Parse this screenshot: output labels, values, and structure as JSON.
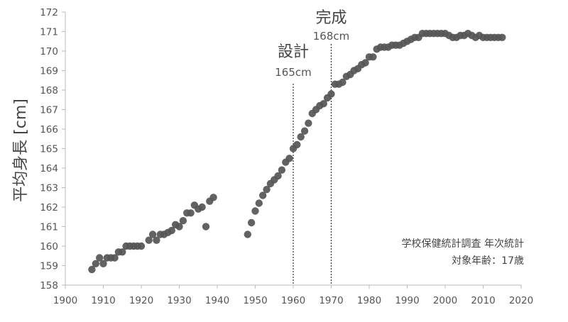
{
  "chart_data": {
    "type": "scatter",
    "title": "",
    "xlabel": "",
    "ylabel": "平均身長 [cm]",
    "xlim": [
      1900,
      2020
    ],
    "ylim": [
      158,
      172
    ],
    "xticks": [
      1900,
      1910,
      1920,
      1930,
      1940,
      1950,
      1960,
      1970,
      1980,
      1990,
      2000,
      2010,
      2020
    ],
    "yticks": [
      158,
      159,
      160,
      161,
      162,
      163,
      164,
      165,
      166,
      167,
      168,
      169,
      170,
      171,
      172
    ],
    "grid": false,
    "marker_color": "#555555",
    "annotations": [
      {
        "x": 1960,
        "label": "設計",
        "sublabel": "165cm"
      },
      {
        "x": 1970,
        "label": "完成",
        "sublabel": "168cm"
      }
    ],
    "source_note": [
      "学校保健統計調査 年次統計",
      "対象年齢：17歳"
    ],
    "points": [
      [
        1907,
        158.8
      ],
      [
        1908,
        159.1
      ],
      [
        1909,
        159.4
      ],
      [
        1910,
        159.1
      ],
      [
        1911,
        159.4
      ],
      [
        1912,
        159.4
      ],
      [
        1913,
        159.4
      ],
      [
        1914,
        159.7
      ],
      [
        1915,
        159.7
      ],
      [
        1916,
        160.0
      ],
      [
        1917,
        160.0
      ],
      [
        1918,
        160.0
      ],
      [
        1919,
        160.0
      ],
      [
        1920,
        160.0
      ],
      [
        1922,
        160.3
      ],
      [
        1923,
        160.6
      ],
      [
        1924,
        160.3
      ],
      [
        1925,
        160.6
      ],
      [
        1926,
        160.6
      ],
      [
        1927,
        160.7
      ],
      [
        1928,
        160.8
      ],
      [
        1929,
        161.1
      ],
      [
        1930,
        161.0
      ],
      [
        1931,
        161.3
      ],
      [
        1932,
        161.7
      ],
      [
        1933,
        161.7
      ],
      [
        1934,
        162.1
      ],
      [
        1935,
        161.9
      ],
      [
        1936,
        162.0
      ],
      [
        1937,
        161.0
      ],
      [
        1938,
        162.3
      ],
      [
        1939,
        162.5
      ],
      [
        1948,
        160.6
      ],
      [
        1949,
        161.2
      ],
      [
        1950,
        161.8
      ],
      [
        1951,
        162.2
      ],
      [
        1952,
        162.6
      ],
      [
        1953,
        162.9
      ],
      [
        1954,
        163.2
      ],
      [
        1955,
        163.4
      ],
      [
        1956,
        163.6
      ],
      [
        1957,
        163.9
      ],
      [
        1958,
        164.3
      ],
      [
        1959,
        164.5
      ],
      [
        1960,
        165.0
      ],
      [
        1961,
        165.2
      ],
      [
        1962,
        165.6
      ],
      [
        1963,
        165.9
      ],
      [
        1964,
        166.3
      ],
      [
        1965,
        166.8
      ],
      [
        1966,
        167.0
      ],
      [
        1967,
        167.2
      ],
      [
        1968,
        167.3
      ],
      [
        1969,
        167.6
      ],
      [
        1970,
        167.8
      ],
      [
        1971,
        168.3
      ],
      [
        1972,
        168.3
      ],
      [
        1973,
        168.4
      ],
      [
        1974,
        168.7
      ],
      [
        1975,
        168.8
      ],
      [
        1976,
        169.0
      ],
      [
        1977,
        169.1
      ],
      [
        1978,
        169.3
      ],
      [
        1979,
        169.4
      ],
      [
        1980,
        169.7
      ],
      [
        1981,
        169.7
      ],
      [
        1982,
        170.1
      ],
      [
        1983,
        170.2
      ],
      [
        1984,
        170.2
      ],
      [
        1985,
        170.2
      ],
      [
        1986,
        170.3
      ],
      [
        1987,
        170.3
      ],
      [
        1988,
        170.3
      ],
      [
        1989,
        170.4
      ],
      [
        1990,
        170.5
      ],
      [
        1991,
        170.6
      ],
      [
        1992,
        170.7
      ],
      [
        1993,
        170.7
      ],
      [
        1994,
        170.9
      ],
      [
        1995,
        170.9
      ],
      [
        1996,
        170.9
      ],
      [
        1997,
        170.9
      ],
      [
        1998,
        170.9
      ],
      [
        1999,
        170.9
      ],
      [
        2000,
        170.9
      ],
      [
        2001,
        170.8
      ],
      [
        2002,
        170.7
      ],
      [
        2003,
        170.7
      ],
      [
        2004,
        170.8
      ],
      [
        2005,
        170.8
      ],
      [
        2006,
        170.9
      ],
      [
        2007,
        170.8
      ],
      [
        2008,
        170.7
      ],
      [
        2009,
        170.8
      ],
      [
        2010,
        170.7
      ],
      [
        2011,
        170.7
      ],
      [
        2012,
        170.7
      ],
      [
        2013,
        170.7
      ],
      [
        2014,
        170.7
      ],
      [
        2015,
        170.7
      ]
    ]
  }
}
